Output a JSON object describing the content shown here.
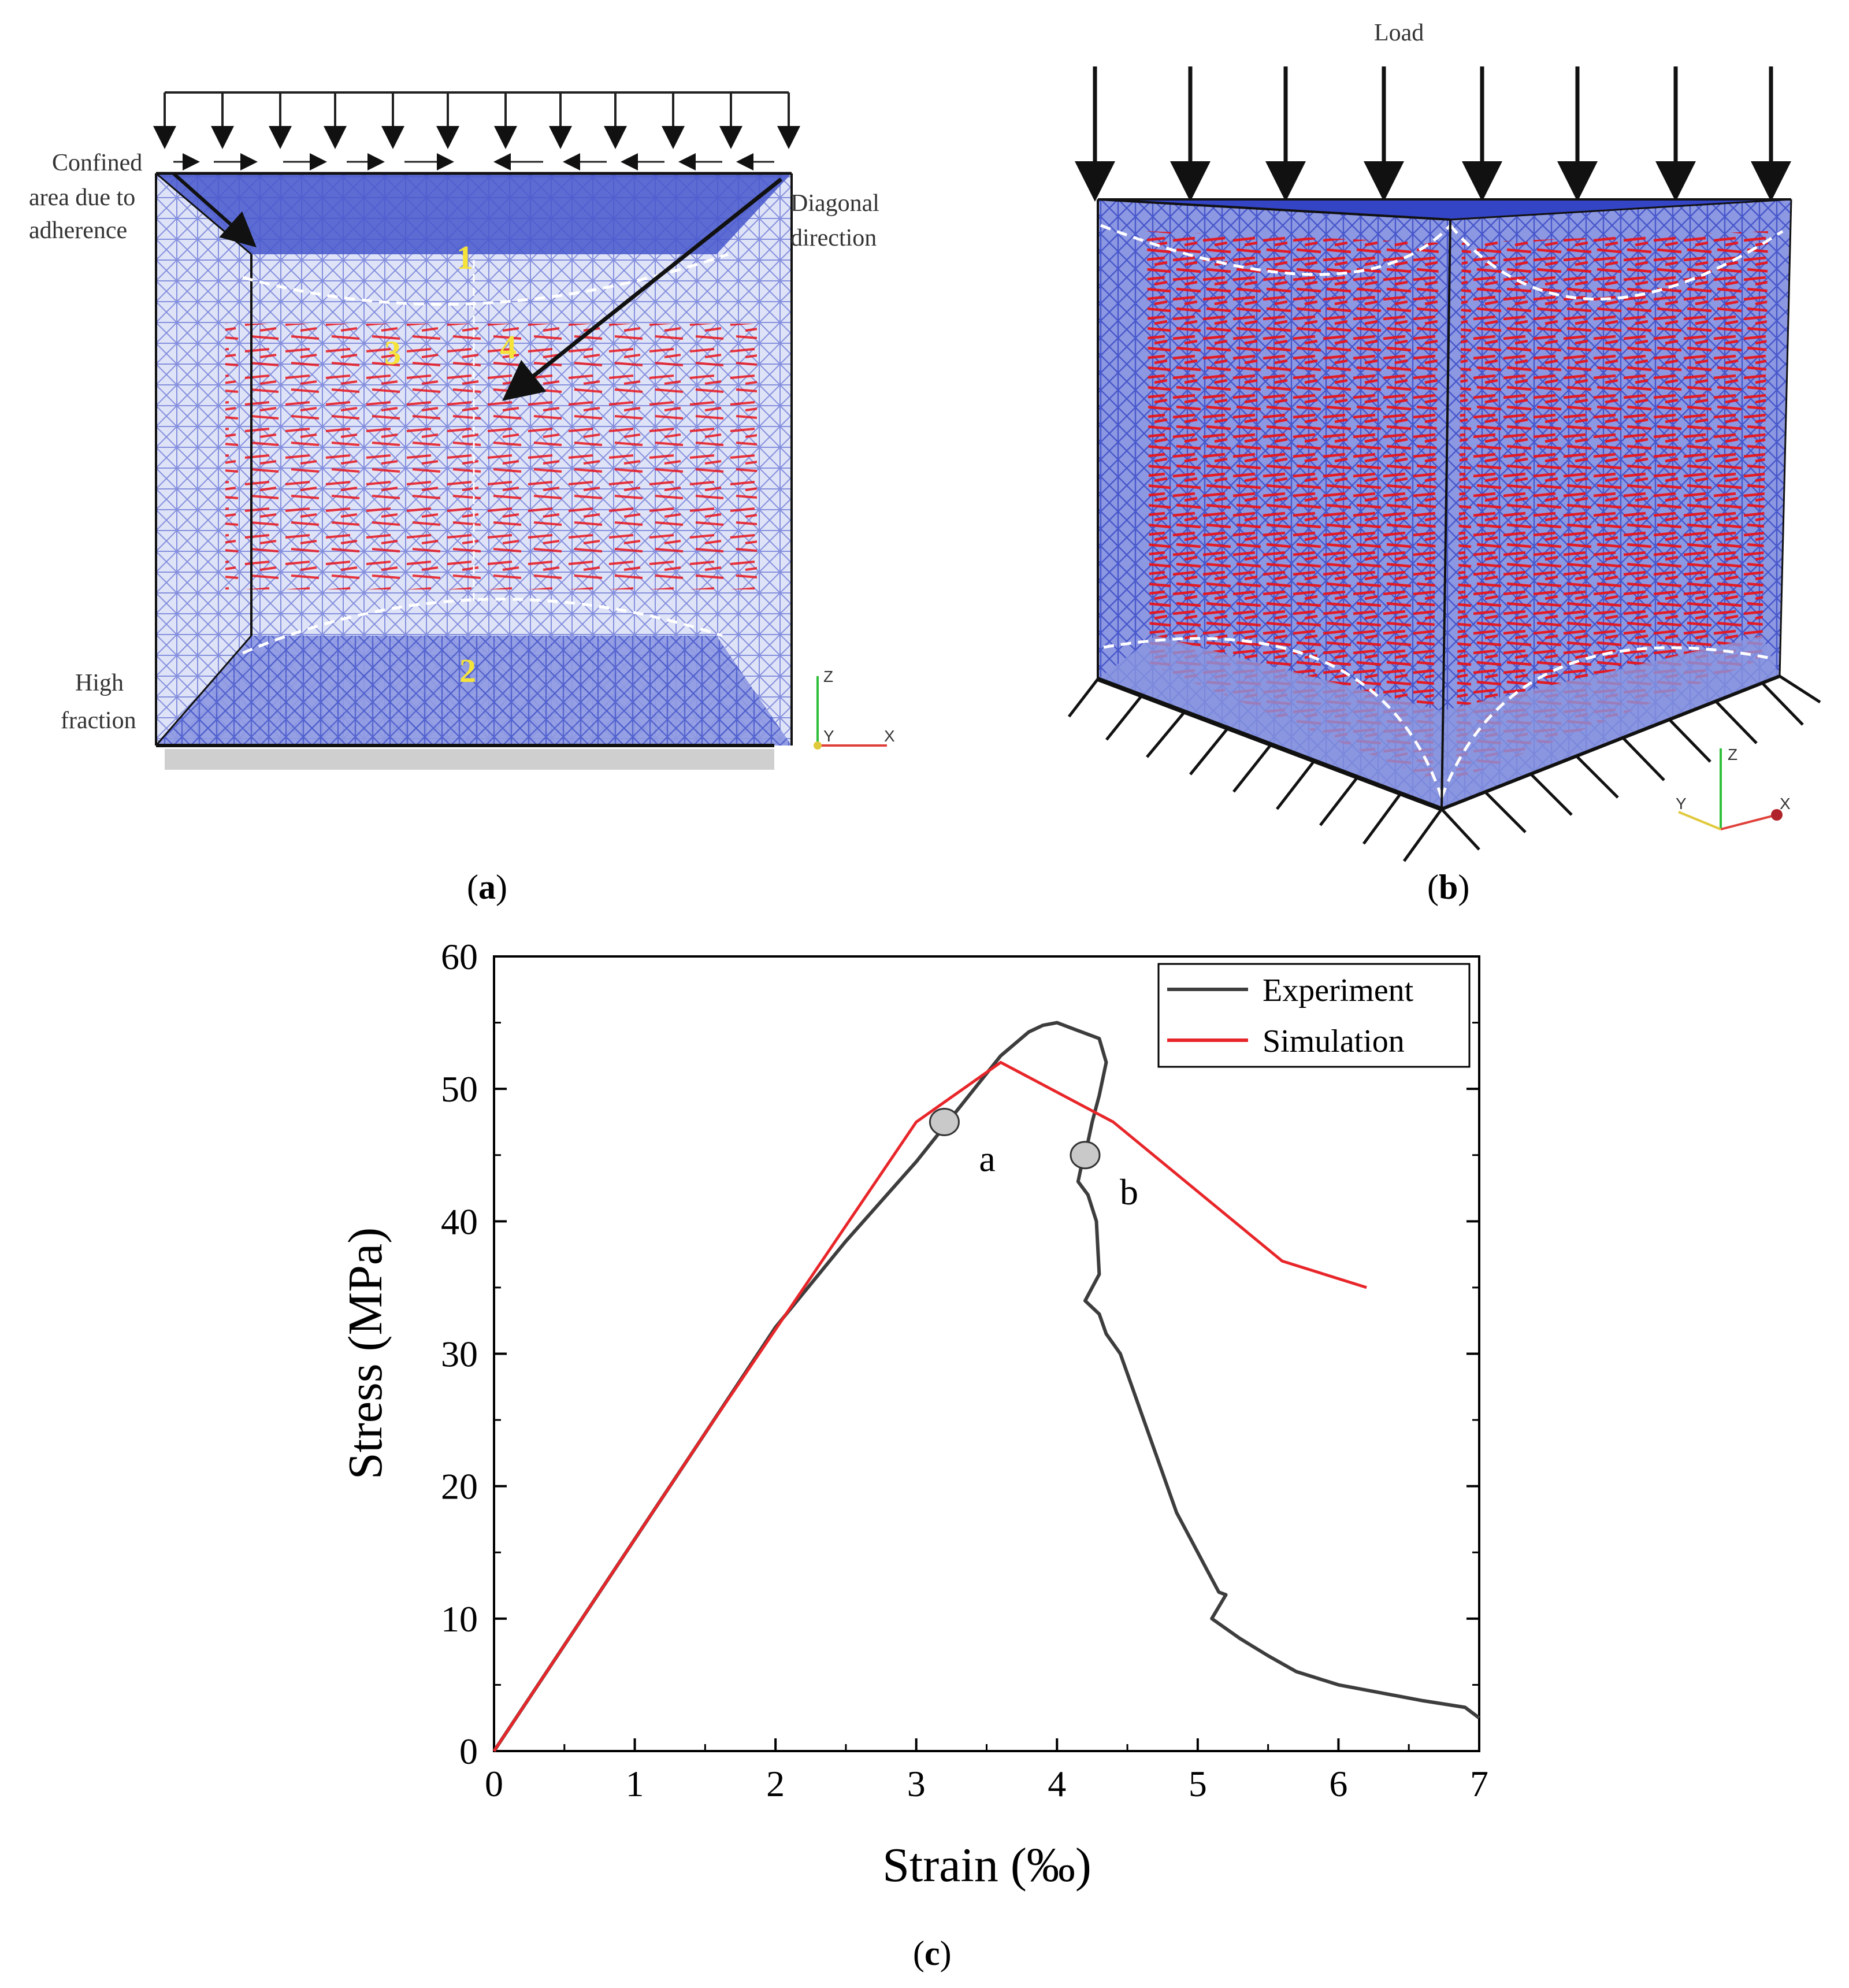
{
  "panel_a": {
    "label_open": "(",
    "label_letter": "a",
    "label_close": ")",
    "annotations": {
      "confined_line1": "Confined",
      "confined_line2": "area due to",
      "confined_line3": "adherence",
      "diagonal_line1": "Diagonal",
      "diagonal_line2": "direction",
      "high_line1": "High",
      "high_line2": "fraction"
    },
    "zones": [
      "1",
      "2",
      "3",
      "4"
    ],
    "axes_triad": {
      "z": "Z",
      "y": "Y",
      "x": "X"
    }
  },
  "panel_b": {
    "label_open": "(",
    "label_letter": "b",
    "label_close": ")",
    "load_label": "Load",
    "axes_triad": {
      "z": "Z",
      "y": "Y",
      "x": "X"
    }
  },
  "panel_c": {
    "label_open": "(",
    "label_letter": "c",
    "label_close": ")"
  },
  "colors": {
    "mesh_blue": "#3f51c7",
    "mesh_light": "#aab4ea",
    "vector_red": "#e8141b",
    "experiment": "#3d3d3d",
    "simulation": "#e8262a",
    "marker_fill": "#c9c9c9"
  },
  "chart_data": {
    "type": "line",
    "xlabel": "Strain (‰)",
    "ylabel": "Stress (MPa)",
    "xlim": [
      0,
      7
    ],
    "ylim": [
      0,
      60
    ],
    "xticks": [
      0,
      1,
      2,
      3,
      4,
      5,
      6,
      7
    ],
    "yticks": [
      0,
      10,
      20,
      30,
      40,
      50,
      60
    ],
    "legend_position": "top-right",
    "grid": false,
    "series": [
      {
        "name": "Experiment",
        "color": "#3d3d3d",
        "x": [
          0,
          0.5,
          1.0,
          1.5,
          2.0,
          2.5,
          3.0,
          3.3,
          3.6,
          3.8,
          3.9,
          4.0,
          4.1,
          4.2,
          4.3,
          4.35,
          4.3,
          4.25,
          4.22,
          4.18,
          4.15,
          4.22,
          4.25,
          4.28,
          4.3,
          4.2,
          4.3,
          4.35,
          4.45,
          4.5,
          4.55,
          4.6,
          4.65,
          4.7,
          4.75,
          4.8,
          4.85,
          4.9,
          4.95,
          5.0,
          5.05,
          5.1,
          5.15,
          5.2,
          5.1,
          5.3,
          5.5,
          5.7,
          6.0,
          6.3,
          6.6,
          6.9,
          7.0
        ],
        "y": [
          0,
          8,
          16,
          24,
          32,
          38.5,
          44.5,
          48.5,
          52.5,
          54.3,
          54.8,
          55,
          54.6,
          54.2,
          53.8,
          52,
          49.5,
          47.5,
          46,
          44.5,
          43,
          42,
          41,
          40,
          36,
          34,
          33,
          31.5,
          30,
          28.5,
          27,
          25.5,
          24,
          22.5,
          21,
          19.5,
          18,
          17,
          16,
          15,
          14,
          13,
          12,
          11.8,
          10,
          8.5,
          7.2,
          6,
          5,
          4.4,
          3.8,
          3.3,
          2.5
        ]
      },
      {
        "name": "Simulation",
        "color": "#e8262a",
        "x": [
          0,
          1.5,
          3.0,
          3.6,
          4.4,
          5.6,
          6.2
        ],
        "y": [
          0,
          24,
          47.5,
          52,
          47.5,
          37,
          35
        ]
      }
    ],
    "annotations": [
      {
        "text": "a",
        "x": 3.2,
        "y": 47.5
      },
      {
        "text": "b",
        "x": 4.2,
        "y": 45
      }
    ]
  }
}
